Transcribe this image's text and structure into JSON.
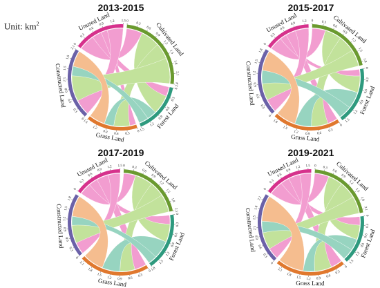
{
  "unit_prefix": "Unit: km",
  "unit_superscript": "2",
  "colors": {
    "Unused Land": "#d6318c",
    "Cultivated Land": "#6a9a2f",
    "Forest Land": "#2e9a7e",
    "Grass Land": "#e0782e",
    "Constructed Land": "#6b61a8"
  },
  "ribbon_colors": {
    "Unused Land": "#f08cc8",
    "Cultivated Land": "#b8dd8a",
    "Forest Land": "#86cdb6",
    "Grass Land": "#f4b27c",
    "Constructed Land": "#b9b1dc"
  },
  "chart_data": [
    {
      "type": "chord",
      "title": "2013-2015",
      "regions": [
        {
          "name": "Unused Land",
          "label": "Unused Land",
          "ticks": [
            "0",
            "0.3",
            "0.6",
            "0.9",
            "1.2",
            "1.5"
          ]
        },
        {
          "name": "Cultivated Land",
          "label": "Cultivated Land",
          "ticks": [
            "0",
            "0.3",
            "0.6",
            "0.9",
            "1.2",
            "1.5",
            "1.8",
            "2.1",
            "2.4"
          ]
        },
        {
          "name": "Forest Land",
          "label": "Forest Land",
          "ticks": [
            "0",
            "0.3",
            "0.6",
            "0.9",
            "1.2",
            "1.5"
          ]
        },
        {
          "name": "Grass Land",
          "label": "Grass Land",
          "ticks": [
            "0",
            "0.3",
            "0.6",
            "0.9",
            "1.2",
            "1.5",
            "1.8"
          ]
        },
        {
          "name": "Constructed Land",
          "label": "Constructed Land",
          "ticks": [
            "0",
            "0.3",
            "0.6",
            "0.9",
            "1.2",
            "1.5",
            "1.8",
            "2.1"
          ]
        }
      ],
      "flows": [
        {
          "from": "Unused Land",
          "to": "Cultivated Land",
          "value": 0.5
        },
        {
          "from": "Unused Land",
          "to": "Forest Land",
          "value": 0.3
        },
        {
          "from": "Unused Land",
          "to": "Grass Land",
          "value": 0.2
        },
        {
          "from": "Unused Land",
          "to": "Constructed Land",
          "value": 0.5
        },
        {
          "from": "Cultivated Land",
          "to": "Forest Land",
          "value": 0.6
        },
        {
          "from": "Cultivated Land",
          "to": "Grass Land",
          "value": 0.5
        },
        {
          "from": "Cultivated Land",
          "to": "Constructed Land",
          "value": 0.8
        },
        {
          "from": "Forest Land",
          "to": "Grass Land",
          "value": 0.3
        },
        {
          "from": "Forest Land",
          "to": "Constructed Land",
          "value": 0.3
        },
        {
          "from": "Grass Land",
          "to": "Constructed Land",
          "value": 0.5
        }
      ]
    },
    {
      "type": "chord",
      "title": "2015-2017",
      "regions": [
        {
          "name": "Unused Land",
          "label": "Unused Land",
          "ticks": [
            "0",
            "0.3",
            "0.6",
            "0.9",
            "1.2"
          ]
        },
        {
          "name": "Cultivated Land",
          "label": "Cultivated Land",
          "ticks": [
            "0",
            "0.3",
            "0.6",
            "0.9",
            "1.2",
            "1.5",
            "1.8"
          ]
        },
        {
          "name": "Forest Land",
          "label": "Forest Land",
          "ticks": [
            "0",
            "0.3",
            "0.6",
            "0.9",
            "1.2",
            "1.5"
          ]
        },
        {
          "name": "Grass Land",
          "label": "Grass Land",
          "ticks": [
            "0",
            "0.3",
            "0.6",
            "0.9",
            "1.2",
            "1.5",
            "1.8"
          ]
        },
        {
          "name": "Constructed Land",
          "label": "Constructed Land",
          "ticks": [
            "0",
            "0.3",
            "0.6",
            "0.9",
            "1.2",
            "1.5",
            "1.8"
          ]
        }
      ],
      "flows": [
        {
          "from": "Unused Land",
          "to": "Cultivated Land",
          "value": 0.4
        },
        {
          "from": "Unused Land",
          "to": "Forest Land",
          "value": 0.2
        },
        {
          "from": "Unused Land",
          "to": "Grass Land",
          "value": 0.3
        },
        {
          "from": "Unused Land",
          "to": "Constructed Land",
          "value": 0.4
        },
        {
          "from": "Cultivated Land",
          "to": "Forest Land",
          "value": 0.5
        },
        {
          "from": "Cultivated Land",
          "to": "Grass Land",
          "value": 0.5
        },
        {
          "from": "Cultivated Land",
          "to": "Constructed Land",
          "value": 0.5
        },
        {
          "from": "Forest Land",
          "to": "Grass Land",
          "value": 0.5
        },
        {
          "from": "Forest Land",
          "to": "Constructed Land",
          "value": 0.4
        },
        {
          "from": "Grass Land",
          "to": "Constructed Land",
          "value": 0.6
        }
      ]
    },
    {
      "type": "chord",
      "title": "2017-2019",
      "regions": [
        {
          "name": "Unused Land",
          "label": "Unused Land",
          "ticks": [
            "0",
            "0.3",
            "0.6",
            "0.9",
            "1.2",
            "1.5"
          ]
        },
        {
          "name": "Cultivated Land",
          "label": "Cultivated Land",
          "ticks": [
            "0",
            "0.3",
            "0.6",
            "0.9",
            "1.2",
            "1.5",
            "1.8",
            "2.1"
          ]
        },
        {
          "name": "Forest Land",
          "label": "Forest Land",
          "ticks": [
            "0",
            "0.3",
            "0.6",
            "0.9",
            "1.2",
            "1.5",
            "1.8"
          ]
        },
        {
          "name": "Grass Land",
          "label": "Grass Land",
          "ticks": [
            "0",
            "0.3",
            "0.6",
            "0.9",
            "1.2",
            "1.5",
            "1.8",
            "2.1",
            "2.4"
          ]
        },
        {
          "name": "Constructed Land",
          "label": "Constructed Land",
          "ticks": [
            "0",
            "0.3",
            "0.6",
            "0.9",
            "1.2",
            "1.5",
            "1.8"
          ]
        }
      ],
      "flows": [
        {
          "from": "Unused Land",
          "to": "Cultivated Land",
          "value": 0.4
        },
        {
          "from": "Unused Land",
          "to": "Forest Land",
          "value": 0.3
        },
        {
          "from": "Unused Land",
          "to": "Grass Land",
          "value": 0.4
        },
        {
          "from": "Unused Land",
          "to": "Constructed Land",
          "value": 0.4
        },
        {
          "from": "Cultivated Land",
          "to": "Forest Land",
          "value": 0.6
        },
        {
          "from": "Cultivated Land",
          "to": "Grass Land",
          "value": 0.5
        },
        {
          "from": "Cultivated Land",
          "to": "Constructed Land",
          "value": 0.6
        },
        {
          "from": "Forest Land",
          "to": "Grass Land",
          "value": 0.6
        },
        {
          "from": "Forest Land",
          "to": "Constructed Land",
          "value": 0.3
        },
        {
          "from": "Grass Land",
          "to": "Constructed Land",
          "value": 0.7
        }
      ]
    },
    {
      "type": "chord",
      "title": "2019-2021",
      "regions": [
        {
          "name": "Unused Land",
          "label": "Unused Land",
          "ticks": [
            "0",
            "0.3",
            "0.6",
            "0.9",
            "1.2",
            "1.5"
          ]
        },
        {
          "name": "Cultivated Land",
          "label": "Cultivated Land",
          "ticks": [
            "0",
            "0.3",
            "0.6",
            "0.9",
            "1.2",
            "1.5",
            "1.8",
            "2.1"
          ]
        },
        {
          "name": "Forest Land",
          "label": "Forest Land",
          "ticks": [
            "0",
            "0.3",
            "0.6",
            "0.9",
            "1.2",
            "1.5"
          ]
        },
        {
          "name": "Grass Land",
          "label": "Grass Land",
          "ticks": [
            "0",
            "0.3",
            "0.6",
            "0.9",
            "1.2",
            "1.5",
            "1.8",
            "2.1",
            "2.4",
            "2.7"
          ]
        },
        {
          "name": "Constructed Land",
          "label": "Constructed Land",
          "ticks": [
            "0",
            "0.3",
            "0.6",
            "0.9",
            "1.2",
            "1.5",
            "1.8",
            "2.1",
            "2.4"
          ]
        }
      ],
      "flows": [
        {
          "from": "Unused Land",
          "to": "Cultivated Land",
          "value": 0.5
        },
        {
          "from": "Unused Land",
          "to": "Forest Land",
          "value": 0.3
        },
        {
          "from": "Unused Land",
          "to": "Grass Land",
          "value": 0.4
        },
        {
          "from": "Unused Land",
          "to": "Constructed Land",
          "value": 0.4
        },
        {
          "from": "Cultivated Land",
          "to": "Forest Land",
          "value": 0.5
        },
        {
          "from": "Cultivated Land",
          "to": "Grass Land",
          "value": 0.6
        },
        {
          "from": "Cultivated Land",
          "to": "Constructed Land",
          "value": 0.6
        },
        {
          "from": "Forest Land",
          "to": "Grass Land",
          "value": 0.4
        },
        {
          "from": "Forest Land",
          "to": "Constructed Land",
          "value": 0.4
        },
        {
          "from": "Grass Land",
          "to": "Constructed Land",
          "value": 0.9
        }
      ]
    }
  ]
}
